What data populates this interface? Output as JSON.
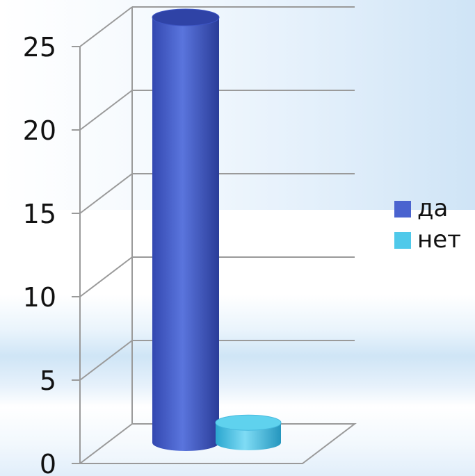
{
  "chart_data": {
    "type": "bar",
    "style": "3d-cylinder",
    "categories": [
      ""
    ],
    "series": [
      {
        "name": "да",
        "values": [
          25.5
        ],
        "color": "#4a63cf"
      },
      {
        "name": "нет",
        "values": [
          1.2
        ],
        "color": "#4fc9ea"
      }
    ],
    "yticks": [
      "0",
      "5",
      "10",
      "15",
      "20",
      "25"
    ],
    "ylim": [
      0,
      25
    ],
    "grid": true,
    "legend_position": "right"
  }
}
